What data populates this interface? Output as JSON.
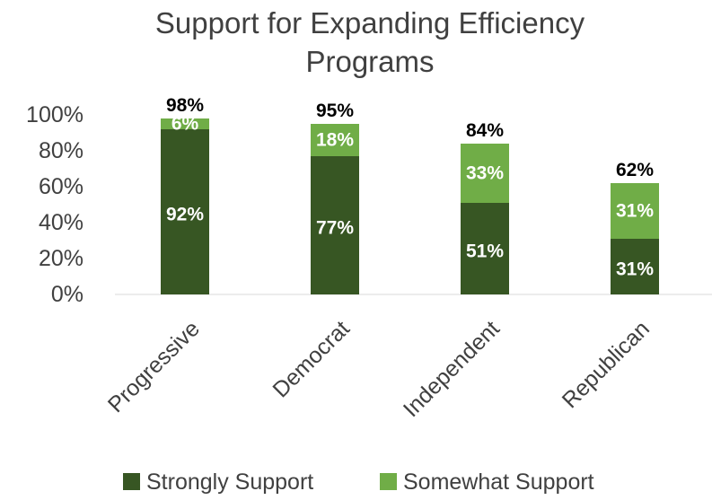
{
  "chart_data": {
    "type": "bar",
    "stacked": true,
    "title": [
      "Support for Expanding Efficiency",
      "Programs"
    ],
    "categories": [
      "Progressive",
      "Democrat",
      "Independent",
      "Republican"
    ],
    "series": [
      {
        "name": "Strongly Support",
        "values": [
          92,
          77,
          51,
          31
        ],
        "color": "#375623"
      },
      {
        "name": "Somewhat Support",
        "values": [
          6,
          18,
          33,
          31
        ],
        "color": "#70AD47"
      }
    ],
    "totals": [
      98,
      95,
      84,
      62
    ],
    "value_suffix": "%",
    "yticks": [
      "0%",
      "20%",
      "40%",
      "60%",
      "80%",
      "100%"
    ],
    "ylim": [
      0,
      100
    ],
    "grid": false,
    "legend_position": "bottom"
  }
}
